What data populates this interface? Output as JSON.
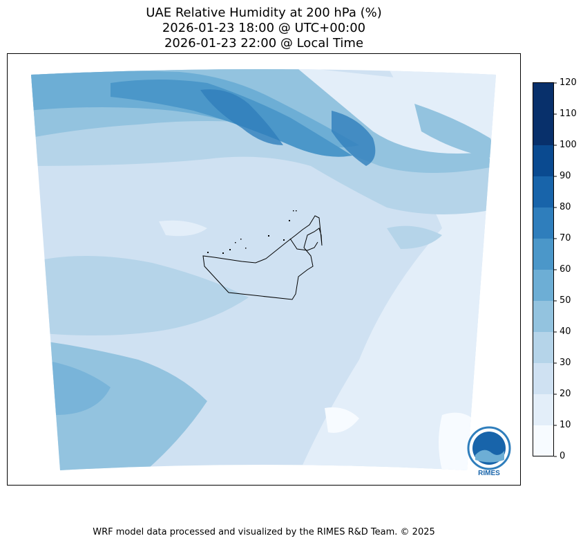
{
  "title": {
    "line1": "UAE Relative Humidity at 200 hPa (%)",
    "line2": "2026-01-23 18:00 @ UTC+00:00",
    "line3": "2026-01-23 22:00 @ Local Time"
  },
  "colorbar": {
    "ticks": [
      "120",
      "110",
      "100",
      "90",
      "80",
      "70",
      "60",
      "50",
      "40",
      "30",
      "20",
      "10",
      "0"
    ],
    "levels": [
      0,
      10,
      20,
      30,
      40,
      50,
      60,
      70,
      80,
      90,
      100,
      110,
      120
    ],
    "colors": [
      "#f7fbff",
      "#e3eef9",
      "#cfe1f2",
      "#b5d4e9",
      "#93c3df",
      "#6daed5",
      "#4b97c9",
      "#2f7ebc",
      "#1864aa",
      "#0a4a90",
      "#08306b",
      "#08306b"
    ]
  },
  "logo": {
    "text": "RIMES"
  },
  "footer": "WRF model data processed and visualized by the RIMES R&D Team. © 2025"
}
